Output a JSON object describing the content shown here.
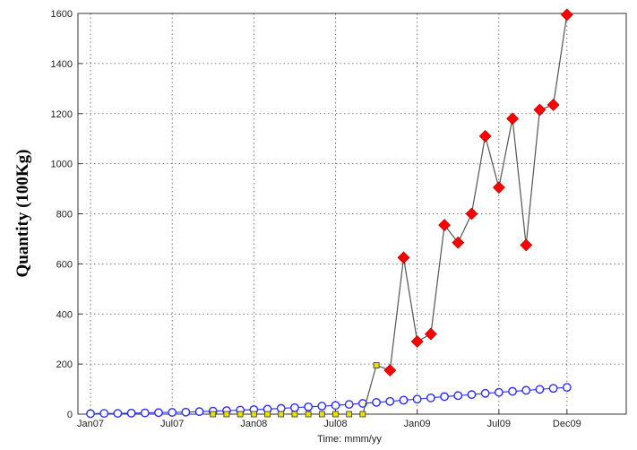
{
  "chart_data": {
    "type": "line",
    "title": "",
    "xlabel": "Time: mmm/yy",
    "ylabel": "Quantity (100Kg)",
    "xlim": [
      0,
      36
    ],
    "ylim": [
      0,
      1600
    ],
    "grid": true,
    "x_ticks": [
      {
        "x": 0,
        "label": "Jan07"
      },
      {
        "x": 6,
        "label": "Jul07"
      },
      {
        "x": 12,
        "label": "Jan08"
      },
      {
        "x": 18,
        "label": "Jul08"
      },
      {
        "x": 24,
        "label": "Jan09"
      },
      {
        "x": 30,
        "label": "Jul09"
      },
      {
        "x": 35,
        "label": "Dec09"
      }
    ],
    "y_ticks": [
      0,
      200,
      400,
      600,
      800,
      1000,
      1200,
      1400,
      1600
    ],
    "series": [
      {
        "color": "#2b2bff",
        "marker": "circle-open",
        "line_color": "#3a3aff",
        "points": [
          {
            "x": 0,
            "y": 2
          },
          {
            "x": 1,
            "y": 3
          },
          {
            "x": 2,
            "y": 3
          },
          {
            "x": 3,
            "y": 4
          },
          {
            "x": 4,
            "y": 5
          },
          {
            "x": 5,
            "y": 6
          },
          {
            "x": 6,
            "y": 7
          },
          {
            "x": 7,
            "y": 8
          },
          {
            "x": 8,
            "y": 10
          },
          {
            "x": 9,
            "y": 12
          },
          {
            "x": 10,
            "y": 14
          },
          {
            "x": 11,
            "y": 16
          },
          {
            "x": 12,
            "y": 18
          },
          {
            "x": 13,
            "y": 20
          },
          {
            "x": 14,
            "y": 23
          },
          {
            "x": 15,
            "y": 26
          },
          {
            "x": 16,
            "y": 29
          },
          {
            "x": 17,
            "y": 32
          },
          {
            "x": 18,
            "y": 35
          },
          {
            "x": 19,
            "y": 39
          },
          {
            "x": 20,
            "y": 43
          },
          {
            "x": 21,
            "y": 47
          },
          {
            "x": 22,
            "y": 51
          },
          {
            "x": 23,
            "y": 56
          },
          {
            "x": 24,
            "y": 60
          },
          {
            "x": 25,
            "y": 65
          },
          {
            "x": 26,
            "y": 70
          },
          {
            "x": 27,
            "y": 74
          },
          {
            "x": 28,
            "y": 78
          },
          {
            "x": 29,
            "y": 83
          },
          {
            "x": 30,
            "y": 87
          },
          {
            "x": 31,
            "y": 91
          },
          {
            "x": 32,
            "y": 95
          },
          {
            "x": 33,
            "y": 99
          },
          {
            "x": 34,
            "y": 103
          },
          {
            "x": 35,
            "y": 107
          }
        ]
      },
      {
        "color": "#e8e000",
        "marker": "square",
        "line_color": "#555555",
        "points": [
          {
            "x": 9,
            "y": 0
          },
          {
            "x": 10,
            "y": 0
          },
          {
            "x": 11,
            "y": 0
          },
          {
            "x": 12,
            "y": 0
          },
          {
            "x": 13,
            "y": 0
          },
          {
            "x": 14,
            "y": 0
          },
          {
            "x": 15,
            "y": 0
          },
          {
            "x": 16,
            "y": 0
          },
          {
            "x": 17,
            "y": 0
          },
          {
            "x": 18,
            "y": 0
          },
          {
            "x": 19,
            "y": 0
          },
          {
            "x": 20,
            "y": 0
          },
          {
            "x": 21,
            "y": 195
          },
          {
            "x": 22,
            "y": 175
          }
        ]
      },
      {
        "color": "#ff0000",
        "marker": "diamond",
        "line_color": "#555555",
        "points": [
          {
            "x": 22,
            "y": 175
          },
          {
            "x": 23,
            "y": 625
          },
          {
            "x": 24,
            "y": 290
          },
          {
            "x": 25,
            "y": 320
          },
          {
            "x": 26,
            "y": 755
          },
          {
            "x": 27,
            "y": 685
          },
          {
            "x": 28,
            "y": 800
          },
          {
            "x": 29,
            "y": 1110
          },
          {
            "x": 30,
            "y": 905
          },
          {
            "x": 31,
            "y": 1180
          },
          {
            "x": 32,
            "y": 675
          },
          {
            "x": 33,
            "y": 1215
          },
          {
            "x": 34,
            "y": 1235
          },
          {
            "x": 35,
            "y": 1595
          }
        ]
      }
    ]
  }
}
